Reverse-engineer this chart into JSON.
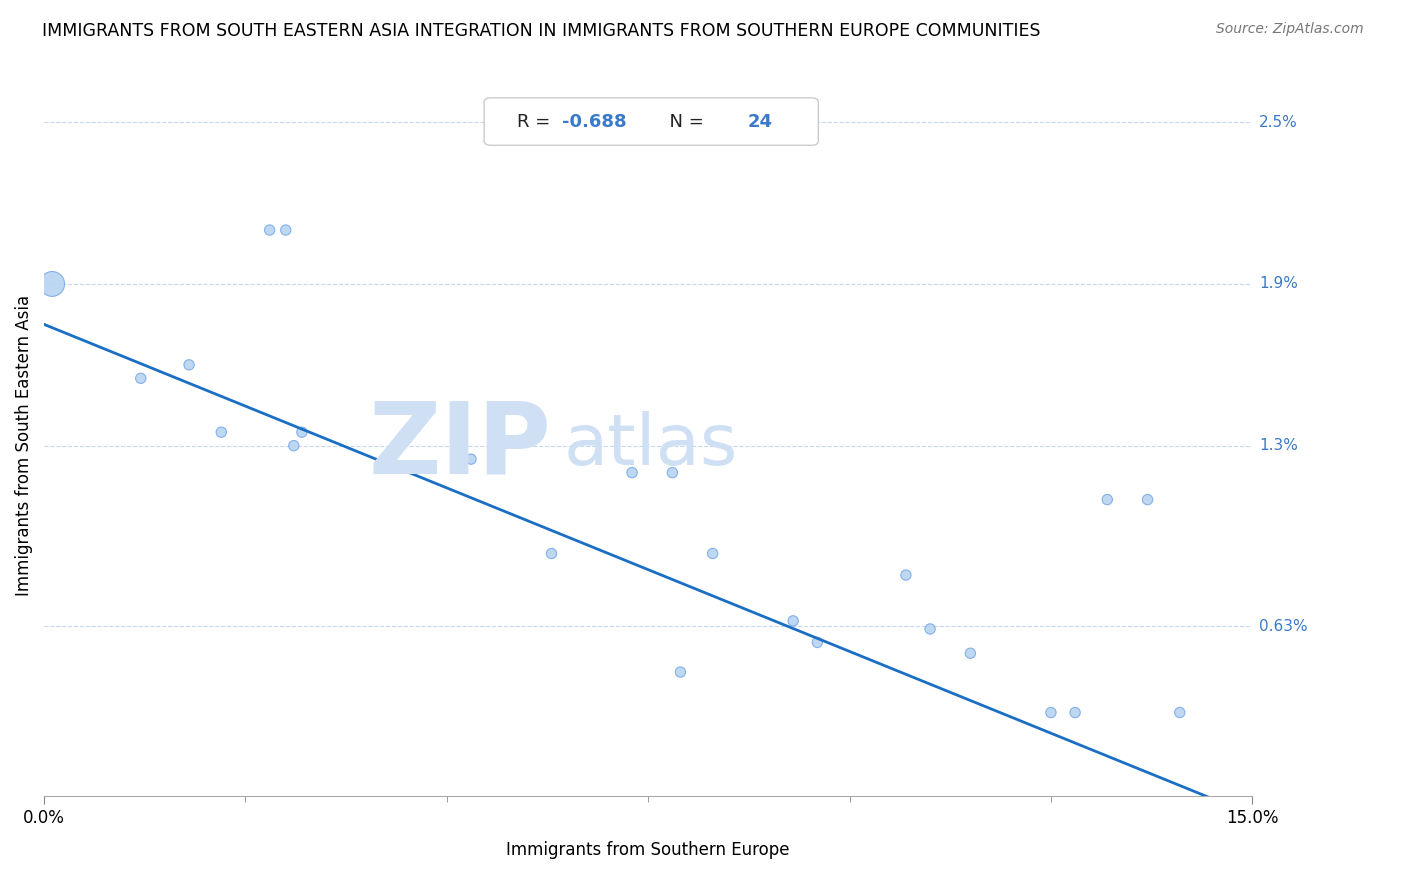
{
  "title": "IMMIGRANTS FROM SOUTH EASTERN ASIA INTEGRATION IN IMMIGRANTS FROM SOUTHERN EUROPE COMMUNITIES",
  "source": "Source: ZipAtlas.com",
  "xlabel": "Immigrants from Southern Europe",
  "ylabel": "Immigrants from South Eastern Asia",
  "R_val": "-0.688",
  "N_val": "24",
  "xlim": [
    0.0,
    0.15
  ],
  "ylim": [
    0.0,
    0.026
  ],
  "xticklabels": [
    "0.0%",
    "15.0%"
  ],
  "xtick_major": [
    0.0,
    0.15
  ],
  "xtick_minor": [
    0.025,
    0.05,
    0.075,
    0.1,
    0.125
  ],
  "ytick_positions": [
    0.0063,
    0.013,
    0.019,
    0.025
  ],
  "ytick_labels": [
    "0.63%",
    "1.3%",
    "1.9%",
    "2.5%"
  ],
  "scatter_x": [
    0.001,
    0.012,
    0.018,
    0.022,
    0.028,
    0.03,
    0.031,
    0.032,
    0.053,
    0.063,
    0.073,
    0.078,
    0.079,
    0.083,
    0.093,
    0.096,
    0.107,
    0.11,
    0.115,
    0.125,
    0.128,
    0.132,
    0.137,
    0.141
  ],
  "scatter_y": [
    0.019,
    0.0155,
    0.016,
    0.0135,
    0.021,
    0.021,
    0.013,
    0.0135,
    0.0125,
    0.009,
    0.012,
    0.012,
    0.0046,
    0.009,
    0.0065,
    0.0057,
    0.0082,
    0.0062,
    0.0053,
    0.0031,
    0.0031,
    0.011,
    0.011,
    0.0031
  ],
  "dot_sizes": [
    320,
    55,
    55,
    55,
    55,
    55,
    55,
    55,
    55,
    55,
    55,
    55,
    55,
    55,
    55,
    55,
    55,
    55,
    55,
    55,
    55,
    55,
    55,
    55
  ],
  "scatter_color": "#b8d4f0",
  "scatter_edgecolor": "#7aaae8",
  "line_color": "#1a6fc4",
  "line_x": [
    0.0,
    0.15
  ],
  "line_y_start": 0.0175,
  "line_y_end": -0.0007,
  "background_color": "#ffffff",
  "title_fontsize": 12.5,
  "grid_color": "#c5d8ee",
  "watermark_zip": "ZIP",
  "watermark_atlas": "atlas",
  "watermark_color": "#cfe0f4",
  "annotation_r_label": "R = ",
  "annotation_r_val": "-0.688",
  "annotation_n_label": "  N = ",
  "annotation_n_val": "24",
  "text_color_label": "#222222",
  "text_color_val": "#3a7ac8",
  "right_label_color": "#3a7ac8"
}
